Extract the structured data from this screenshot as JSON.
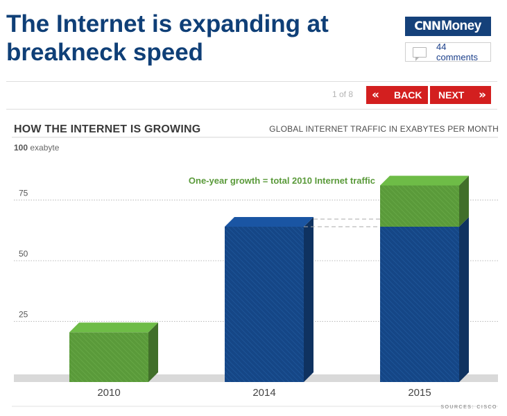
{
  "headline": "The Internet is expanding at breakneck speed",
  "brand": {
    "cnn": "CNN",
    "money": "Money"
  },
  "comments": {
    "label": "44 comments",
    "icon": "comment-bubble-icon"
  },
  "pager": {
    "text": "1 of 8",
    "back_label": "BACK",
    "next_label": "NEXT",
    "back_icon": "double-chevron-left-icon",
    "next_icon": "double-chevron-right-icon"
  },
  "colors": {
    "brand_blue": "#15417a",
    "button_red": "#d31f1f",
    "bar_green": "#5a9a3a",
    "bar_blue": "#154686"
  },
  "chart_data": {
    "type": "bar",
    "title": "HOW THE INTERNET IS GROWING",
    "subtitle": "GLOBAL INTERNET TRAFFIC IN EXABYTES PER MONTH",
    "unit_value": "100",
    "unit_label": "exabyte",
    "ylim": [
      0,
      100
    ],
    "yticks": [
      25,
      50,
      75
    ],
    "grid": true,
    "categories": [
      "2010",
      "2014",
      "2015"
    ],
    "series": [
      {
        "values": [
          0,
          64,
          64
        ],
        "color": "#154686"
      },
      {
        "values": [
          20.5,
          0,
          17
        ],
        "color": "#5a9a3a"
      }
    ],
    "annotation": "One-year growth = total 2010 Internet traffic",
    "source": "SOURCES: CISCO"
  }
}
